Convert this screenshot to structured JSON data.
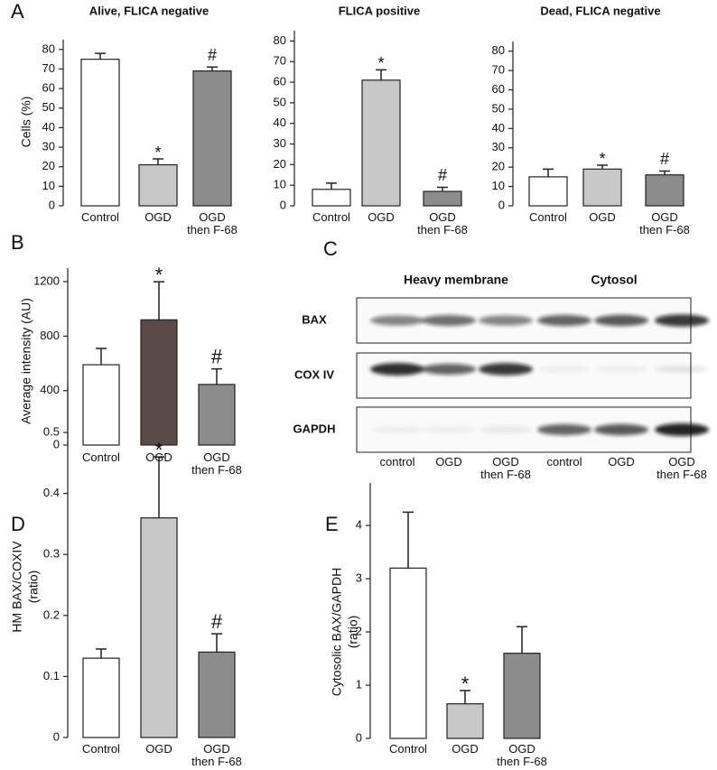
{
  "chart_data": [
    {
      "type": "bar",
      "panel": "A",
      "title": "Alive, FLICA negative",
      "ylabel": [
        "Cells (%)"
      ],
      "categories": [
        "Control",
        "OGD",
        "OGD\nthen F-68"
      ],
      "values": [
        75,
        21,
        69
      ],
      "errors": [
        3,
        3,
        2
      ],
      "markers": [
        null,
        "*",
        "#"
      ],
      "colors": [
        "#ffffff",
        "#c8c8c8",
        "#8c8c8c"
      ],
      "ylim": [
        0,
        85
      ],
      "yticks": [
        0,
        10,
        20,
        30,
        40,
        50,
        60,
        70,
        80
      ]
    },
    {
      "type": "bar",
      "title": "FLICA positive",
      "categories": [
        "Control",
        "OGD",
        "OGD\nthen F-68"
      ],
      "values": [
        8,
        61,
        7
      ],
      "errors": [
        3,
        5,
        2
      ],
      "markers": [
        null,
        "*",
        "#"
      ],
      "colors": [
        "#ffffff",
        "#c8c8c8",
        "#8c8c8c"
      ],
      "ylim": [
        0,
        85
      ],
      "yticks": [
        0,
        10,
        20,
        30,
        40,
        50,
        60,
        70,
        80
      ]
    },
    {
      "type": "bar",
      "title": "Dead, FLICA negative",
      "categories": [
        "Control",
        "OGD",
        "OGD\nthen F-68"
      ],
      "values": [
        15,
        19,
        16
      ],
      "errors": [
        4,
        2,
        2
      ],
      "markers": [
        null,
        "*",
        "#"
      ],
      "colors": [
        "#ffffff",
        "#c8c8c8",
        "#8c8c8c"
      ],
      "ylim": [
        0,
        85
      ],
      "yticks": [
        0,
        10,
        20,
        30,
        40,
        50,
        60,
        70,
        80
      ]
    },
    {
      "type": "bar",
      "panel": "B",
      "ylabel": [
        "Average intensity (AU)"
      ],
      "categories": [
        "Control",
        "OGD",
        "OGD\nthen F-68"
      ],
      "values": [
        590,
        920,
        445
      ],
      "errors": [
        120,
        280,
        115
      ],
      "markers": [
        null,
        "*",
        "#"
      ],
      "colors": [
        "#ffffff",
        "#5a4a48",
        "#8c8c8c"
      ],
      "ylim": [
        0,
        1300
      ],
      "yticks": [
        0,
        400,
        800,
        1200
      ]
    },
    {
      "type": "bar",
      "panel": "D",
      "ylabel": [
        "HM BAX/COXIV",
        "(ratio)"
      ],
      "categories": [
        "Control",
        "OGD",
        "OGD\nthen F-68"
      ],
      "values": [
        0.13,
        0.36,
        0.14
      ],
      "errors": [
        0.015,
        0.1,
        0.03
      ],
      "markers": [
        null,
        "*",
        "#"
      ],
      "colors": [
        "#ffffff",
        "#c8c8c8",
        "#8c8c8c"
      ],
      "ylim": [
        0,
        0.58
      ],
      "yticks": [
        0,
        0.1,
        0.2,
        0.3,
        0.4,
        0.5
      ]
    },
    {
      "type": "bar",
      "panel": "E",
      "ylabel": [
        "Cytosolic BAX/GAPDH",
        "(ratio)"
      ],
      "categories": [
        "Control",
        "OGD",
        "OGD\nthen F-68"
      ],
      "values": [
        3.2,
        0.65,
        1.6
      ],
      "errors": [
        1.05,
        0.25,
        0.5
      ],
      "markers": [
        null,
        "*",
        null
      ],
      "colors": [
        "#ffffff",
        "#c8c8c8",
        "#8c8c8c"
      ],
      "ylim": [
        0,
        4.8
      ],
      "yticks": [
        0,
        1,
        2,
        3,
        4
      ]
    }
  ],
  "blot": {
    "panel": "C",
    "groups": [
      "Heavy membrane",
      "Cytosol"
    ],
    "rows": [
      "BAX",
      "COX IV",
      "GAPDH"
    ],
    "lanes": [
      "control",
      "OGD",
      "OGD\nthen F-68",
      "control",
      "OGD",
      "OGD\nthen F-68"
    ]
  }
}
